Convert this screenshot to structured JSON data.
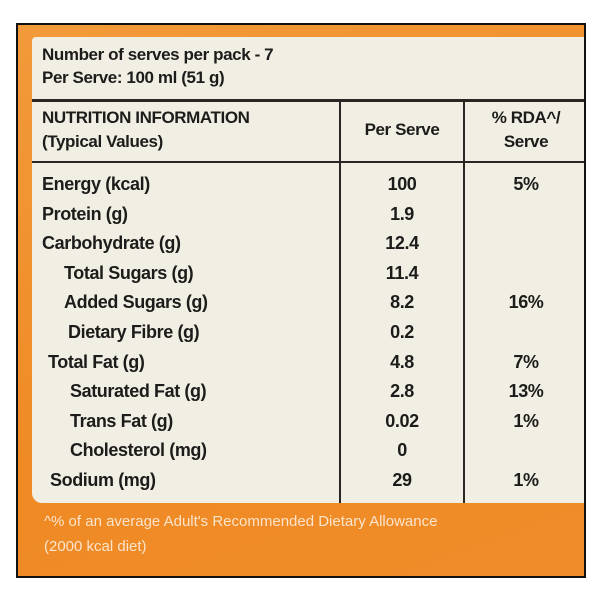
{
  "header": {
    "serves_per_pack": "Number of serves per pack - 7",
    "serve_size": "Per Serve: 100 ml (51 g)"
  },
  "table": {
    "columns": [
      [
        "NUTRITION INFORMATION",
        "(Typical Values)"
      ],
      [
        "Per Serve"
      ],
      [
        "% RDA^/",
        "Serve"
      ]
    ],
    "rows": [
      {
        "name": "Energy (kcal)",
        "per_serve": "100",
        "rda": "5%"
      },
      {
        "name": "Protein (g)",
        "per_serve": "1.9"
      },
      {
        "name": "Carbohydrate (g)",
        "per_serve": "12.4"
      },
      {
        "name": "Total Sugars (g)",
        "per_serve": "11.4"
      },
      {
        "name": "Added Sugars (g)",
        "per_serve": "8.2",
        "rda": "16%"
      },
      {
        "name": "Dietary Fibre (g)",
        "per_serve": "0.2"
      },
      {
        "name": "Total Fat (g)",
        "per_serve": "4.8",
        "rda": "7%"
      },
      {
        "name": "Saturated Fat (g)",
        "per_serve": "2.8",
        "rda": "13%"
      },
      {
        "name": "Trans Fat (g)",
        "per_serve": "0.02",
        "rda": "1%"
      },
      {
        "name": "Cholesterol (mg)",
        "per_serve": "0"
      },
      {
        "name": "Sodium (mg)",
        "per_serve": "29",
        "rda": "1%"
      }
    ]
  },
  "footnote": [
    "^% of an average Adult's Recommended Dietary Allowance",
    "(2000 kcal diet)"
  ]
}
